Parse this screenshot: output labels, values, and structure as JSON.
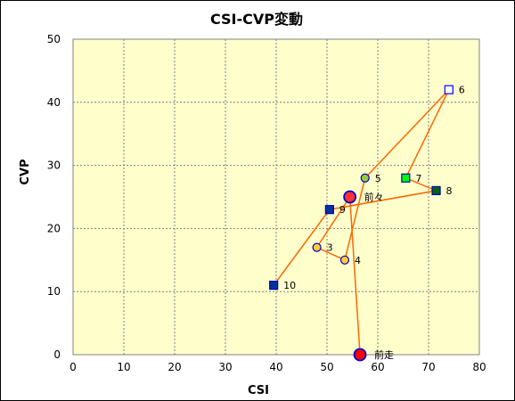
{
  "chart_data": {
    "type": "scatter",
    "title": "CSI-CVP変動",
    "xlabel": "CSI",
    "ylabel": "CVP",
    "xlim": [
      0,
      80
    ],
    "ylim": [
      0,
      50
    ],
    "x_ticks": [
      "0",
      "10",
      "20",
      "30",
      "40",
      "50",
      "60",
      "70",
      "80"
    ],
    "y_ticks": [
      "0",
      "10",
      "20",
      "30",
      "40",
      "50"
    ],
    "grid": true,
    "colors": {
      "plot_bg": "#ffffcc",
      "line": "#ff6600",
      "grid": "#7f7f7f"
    },
    "connection_order": [
      "前走",
      "前々",
      "3",
      "4",
      "5",
      "6",
      "7",
      "8",
      "9",
      "10"
    ],
    "points": [
      {
        "label": "前走",
        "x": 56.5,
        "y": 0,
        "marker": "circle",
        "fill": "#ff0000",
        "stroke": "#0000cc",
        "size": "large"
      },
      {
        "label": "前々",
        "x": 54.5,
        "y": 25,
        "marker": "circle",
        "fill": "#ff3333",
        "stroke": "#0000cc",
        "size": "large"
      },
      {
        "label": "3",
        "x": 48,
        "y": 17,
        "marker": "circle",
        "fill": "#ffcc33",
        "stroke": "#0000cc",
        "size": "small"
      },
      {
        "label": "4",
        "x": 53.5,
        "y": 15,
        "marker": "circle",
        "fill": "#ffcc33",
        "stroke": "#0000cc",
        "size": "small"
      },
      {
        "label": "5",
        "x": 57.5,
        "y": 28,
        "marker": "circle",
        "fill": "#99cc33",
        "stroke": "#0000cc",
        "size": "small"
      },
      {
        "label": "6",
        "x": 74,
        "y": 42,
        "marker": "square",
        "fill": "#ffffff",
        "stroke": "#0000ff",
        "size": "small"
      },
      {
        "label": "7",
        "x": 65.5,
        "y": 28,
        "marker": "square",
        "fill": "#00ff00",
        "stroke": "#0000cc",
        "size": "small"
      },
      {
        "label": "8",
        "x": 71.5,
        "y": 26,
        "marker": "square",
        "fill": "#006600",
        "stroke": "#0000cc",
        "size": "small"
      },
      {
        "label": "9",
        "x": 50.5,
        "y": 23,
        "marker": "square",
        "fill": "#003399",
        "stroke": "#0000cc",
        "size": "small"
      },
      {
        "label": "10",
        "x": 39.5,
        "y": 11,
        "marker": "square",
        "fill": "#003399",
        "stroke": "#0000cc",
        "size": "small"
      }
    ]
  }
}
